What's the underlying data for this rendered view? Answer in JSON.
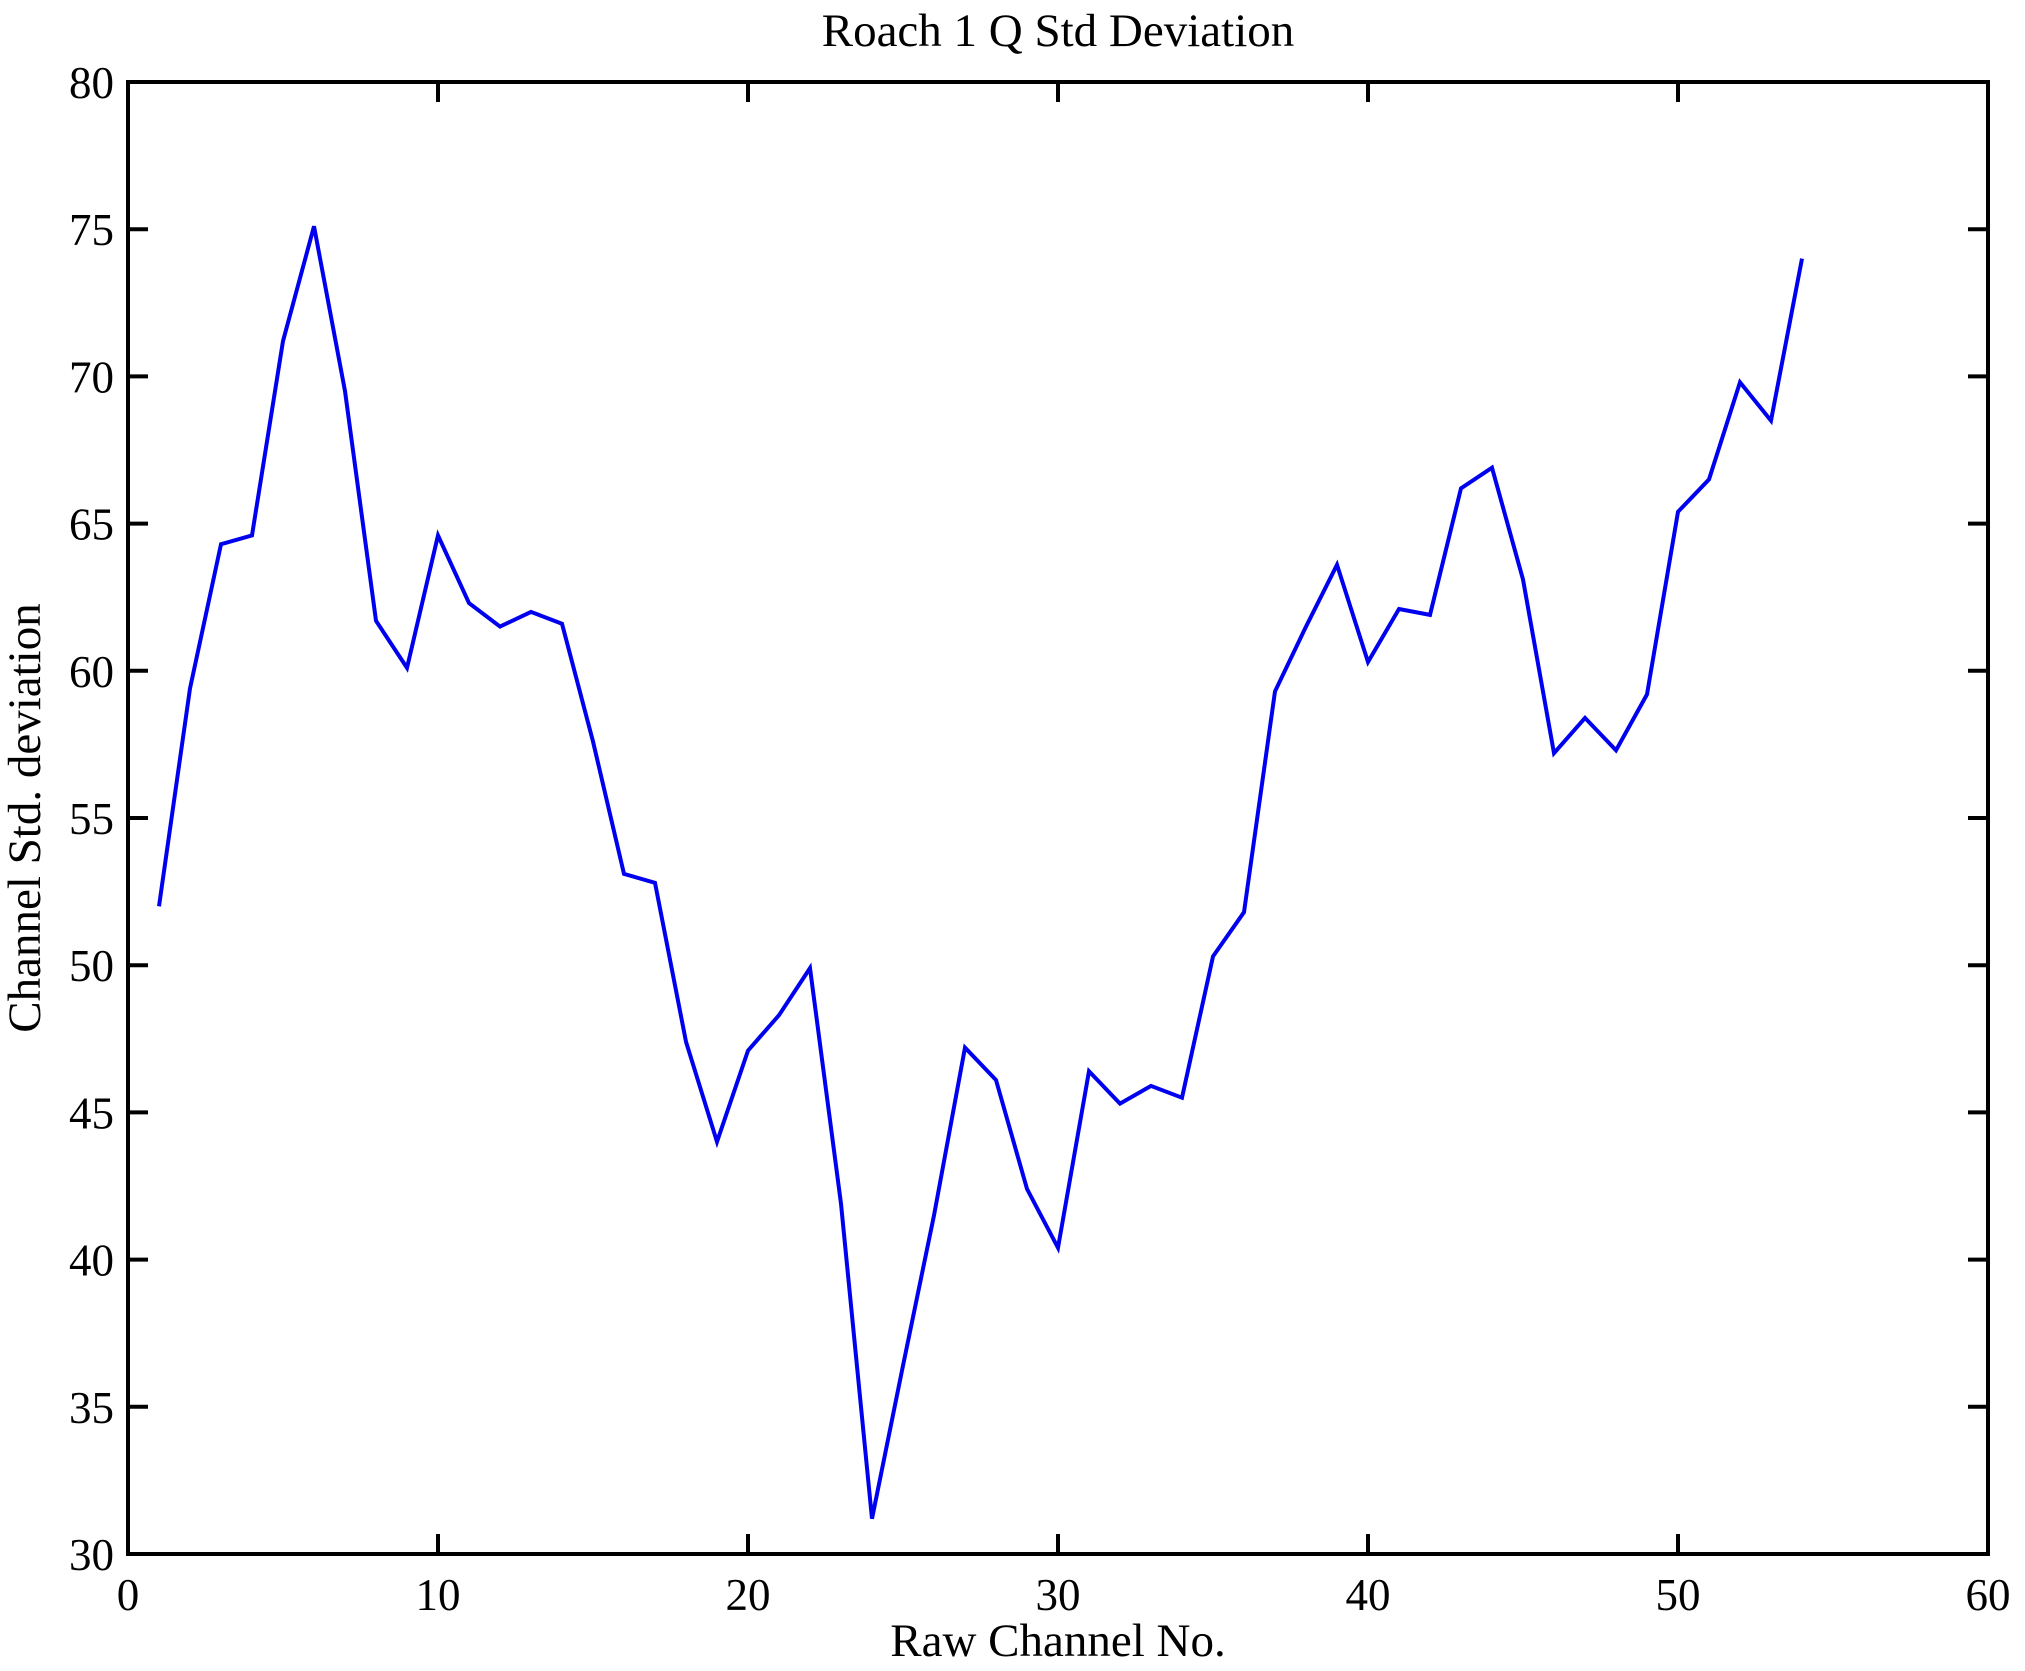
{
  "figure": {
    "title": "Roach 1 Q Std Deviation",
    "background_color": "#ffffff",
    "axis_color": "#000000",
    "line_color": "#0000f0"
  },
  "chart_data": {
    "type": "line",
    "title": "Roach 1 Q Std Deviation",
    "xlabel": "Raw Channel No.",
    "ylabel": "Channel Std. deviation",
    "xlim": [
      0,
      60
    ],
    "ylim": [
      30,
      80
    ],
    "xticks": [
      0,
      10,
      20,
      30,
      40,
      50,
      60
    ],
    "yticks": [
      30,
      35,
      40,
      45,
      50,
      55,
      60,
      65,
      70,
      75,
      80
    ],
    "grid": false,
    "legend_position": "none",
    "series_name": "Channel Std. deviation",
    "x": [
      1,
      2,
      3,
      4,
      5,
      6,
      7,
      8,
      9,
      10,
      11,
      12,
      13,
      14,
      15,
      16,
      17,
      18,
      19,
      20,
      21,
      22,
      23,
      24,
      25,
      26,
      27,
      28,
      29,
      30,
      31,
      32,
      33,
      34,
      35,
      36,
      37,
      38,
      39,
      40,
      41,
      42,
      43,
      44,
      45,
      46,
      47,
      48,
      49,
      50,
      51,
      52,
      53,
      54
    ],
    "values": [
      52.0,
      59.4,
      64.3,
      64.6,
      71.2,
      75.1,
      69.5,
      61.7,
      60.1,
      64.6,
      62.3,
      61.5,
      62.0,
      61.6,
      57.6,
      53.1,
      52.8,
      47.4,
      44.0,
      47.1,
      48.3,
      49.9,
      41.9,
      31.2,
      36.4,
      41.5,
      47.2,
      46.1,
      42.4,
      40.4,
      46.4,
      45.3,
      45.9,
      45.5,
      50.3,
      51.8,
      59.3,
      61.5,
      63.6,
      60.3,
      62.1,
      61.9,
      66.2,
      66.9,
      63.1,
      57.2,
      58.4,
      57.3,
      59.2,
      65.4,
      66.5,
      69.8,
      68.5,
      74.0
    ]
  }
}
